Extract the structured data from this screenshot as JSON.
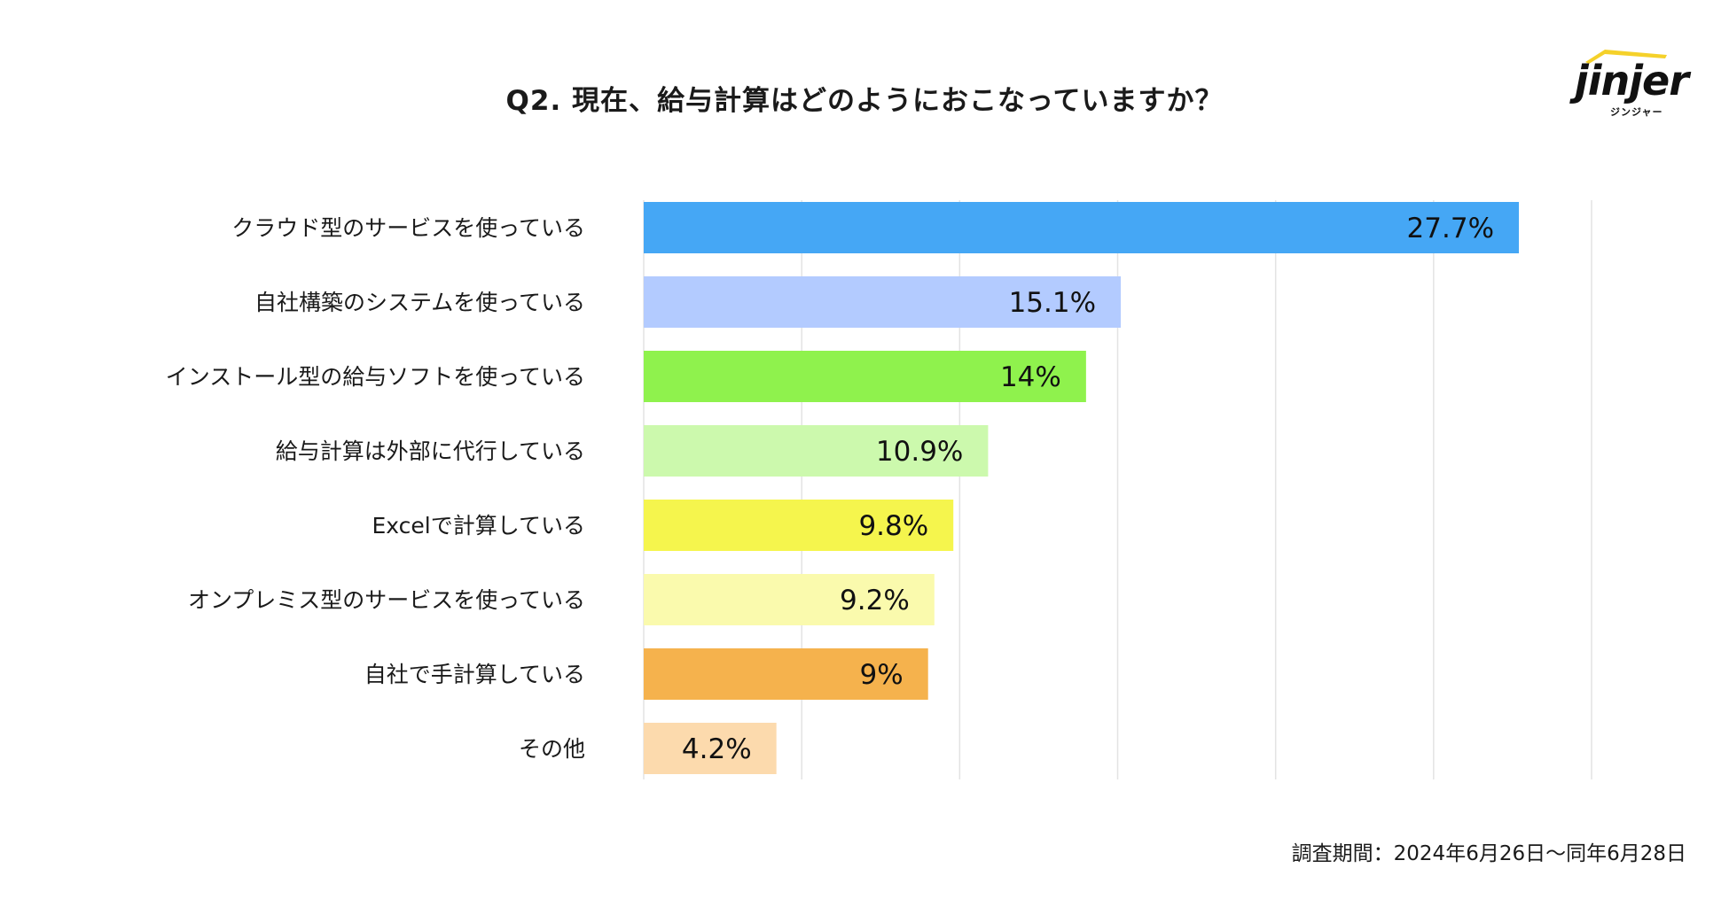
{
  "title": "Q2. 現在、給与計算はどのようにおこなっていますか？",
  "logo": {
    "word": "jinjer",
    "sub": "ジンジャー"
  },
  "footnote": "調査期間：2024年6月26日〜同年6月28日",
  "colors": {
    "grid": "#e3e3e3",
    "logo_accent": "#f5d12a"
  },
  "chart_data": {
    "type": "bar",
    "orientation": "horizontal",
    "title": "Q2. 現在、給与計算はどのようにおこなっていますか？",
    "xlim": [
      0,
      30
    ],
    "grid": true,
    "gridlines_x": [
      0,
      5,
      10,
      15,
      20,
      25,
      30
    ],
    "categories": [
      "クラウド型のサービスを使っている",
      "自社構築のシステムを使っている",
      "インストール型の給与ソフトを使っている",
      "給与計算は外部に代行している",
      "Excelで計算している",
      "オンプレミス型のサービスを使っている",
      "自社で手計算している",
      "その他"
    ],
    "values": [
      27.7,
      15.1,
      14,
      10.9,
      9.8,
      9.2,
      9,
      4.2
    ],
    "value_labels": [
      "27.7%",
      "15.1%",
      "14%",
      "10.9%",
      "9.8%",
      "9.2%",
      "9%",
      "4.2%"
    ],
    "bar_colors": [
      "#45a7f5",
      "#b3cbff",
      "#8ff24d",
      "#ccf9ad",
      "#f5f54d",
      "#fafaad",
      "#f5b24d",
      "#fcdaad"
    ]
  }
}
